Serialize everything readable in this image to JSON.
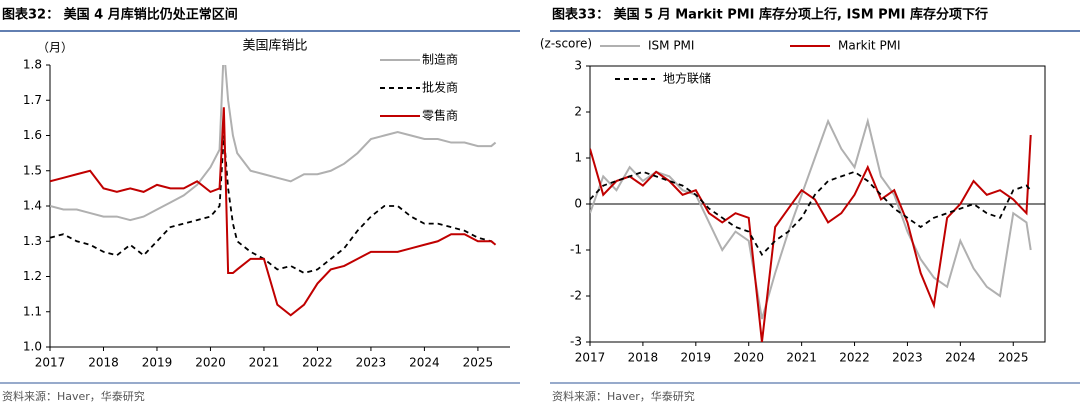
{
  "chart_data": [
    {
      "type": "line",
      "caption": "图表32：  美国 4 月库销比仍处正常区间",
      "title": "美国库销比",
      "y_label": "（月）",
      "source": "资料来源：Haver，华泰研究",
      "x": [
        2017,
        2017.25,
        2017.5,
        2017.75,
        2018,
        2018.25,
        2018.5,
        2018.75,
        2019,
        2019.25,
        2019.5,
        2019.75,
        2020,
        2020.17,
        2020.25,
        2020.33,
        2020.42,
        2020.5,
        2020.75,
        2021,
        2021.25,
        2021.5,
        2021.75,
        2022,
        2022.25,
        2022.5,
        2022.75,
        2023,
        2023.25,
        2023.5,
        2023.75,
        2024,
        2024.25,
        2024.5,
        2024.75,
        2025,
        2025.25,
        2025.33
      ],
      "series": [
        {
          "name": "制造商",
          "color": "#b0b0b0",
          "dash": false,
          "values": [
            1.4,
            1.39,
            1.39,
            1.38,
            1.37,
            1.37,
            1.36,
            1.37,
            1.39,
            1.41,
            1.43,
            1.46,
            1.51,
            1.56,
            1.85,
            1.7,
            1.6,
            1.55,
            1.5,
            1.49,
            1.48,
            1.47,
            1.49,
            1.49,
            1.5,
            1.52,
            1.55,
            1.59,
            1.6,
            1.61,
            1.6,
            1.59,
            1.59,
            1.58,
            1.58,
            1.57,
            1.57,
            1.58
          ]
        },
        {
          "name": "批发商",
          "color": "#000000",
          "dash": true,
          "values": [
            1.31,
            1.32,
            1.3,
            1.29,
            1.27,
            1.26,
            1.29,
            1.26,
            1.3,
            1.34,
            1.35,
            1.36,
            1.37,
            1.4,
            1.6,
            1.45,
            1.35,
            1.3,
            1.27,
            1.25,
            1.22,
            1.23,
            1.21,
            1.22,
            1.25,
            1.28,
            1.33,
            1.37,
            1.4,
            1.4,
            1.37,
            1.35,
            1.35,
            1.34,
            1.33,
            1.31,
            1.3,
            1.29
          ]
        },
        {
          "name": "零售商",
          "color": "#c00000",
          "dash": false,
          "values": [
            1.47,
            1.48,
            1.49,
            1.5,
            1.45,
            1.44,
            1.45,
            1.44,
            1.46,
            1.45,
            1.45,
            1.47,
            1.44,
            1.45,
            1.68,
            1.21,
            1.21,
            1.22,
            1.25,
            1.25,
            1.12,
            1.09,
            1.12,
            1.18,
            1.22,
            1.23,
            1.25,
            1.27,
            1.27,
            1.27,
            1.28,
            1.29,
            1.3,
            1.32,
            1.32,
            1.3,
            1.3,
            1.29
          ]
        }
      ],
      "xlim": [
        2017,
        2025.6
      ],
      "xticks": [
        2017,
        2018,
        2019,
        2020,
        2021,
        2022,
        2023,
        2024,
        2025
      ],
      "ylim": [
        1.0,
        1.8
      ],
      "yticks": [
        {
          "value": 1.0,
          "label": "1.0"
        },
        1.1,
        1.2,
        1.3,
        1.4,
        1.5,
        1.6,
        1.7,
        1.8
      ]
    },
    {
      "type": "line",
      "caption": "图表33：  美国 5 月 Markit PMI 库存分项上行, ISM PMI 库存分项下行",
      "y_label": "(z-score)",
      "source": "资料来源：Haver，华泰研究",
      "x": [
        2017,
        2017.25,
        2017.5,
        2017.75,
        2018,
        2018.25,
        2018.5,
        2018.75,
        2019,
        2019.25,
        2019.5,
        2019.75,
        2020,
        2020.25,
        2020.5,
        2020.75,
        2021,
        2021.25,
        2021.5,
        2021.75,
        2022,
        2022.25,
        2022.5,
        2022.75,
        2023,
        2023.25,
        2023.5,
        2023.75,
        2024,
        2024.25,
        2024.5,
        2024.75,
        2025,
        2025.25,
        2025.33
      ],
      "series": [
        {
          "name": "ISM PMI",
          "color": "#b0b0b0",
          "dash": false,
          "values": [
            -0.2,
            0.6,
            0.3,
            0.8,
            0.5,
            0.7,
            0.6,
            0.3,
            0.2,
            -0.4,
            -1.0,
            -0.6,
            -0.8,
            -2.5,
            -1.5,
            -0.6,
            0.2,
            1.0,
            1.8,
            1.2,
            0.8,
            1.8,
            0.6,
            0.2,
            -0.6,
            -1.2,
            -1.6,
            -1.8,
            -0.8,
            -1.4,
            -1.8,
            -2.0,
            -0.2,
            -0.4,
            -1.0
          ]
        },
        {
          "name": "Markit PMI",
          "color": "#c00000",
          "dash": false,
          "values": [
            1.2,
            0.2,
            0.5,
            0.6,
            0.4,
            0.7,
            0.5,
            0.2,
            0.3,
            -0.2,
            -0.4,
            -0.2,
            -0.3,
            -3.0,
            -0.5,
            -0.1,
            0.3,
            0.1,
            -0.4,
            -0.2,
            0.2,
            0.8,
            0.1,
            0.3,
            -0.4,
            -1.5,
            -2.2,
            -0.3,
            0.0,
            0.5,
            0.2,
            0.3,
            0.1,
            -0.2,
            1.5
          ]
        },
        {
          "name": "地方联储",
          "color": "#000000",
          "dash": true,
          "values": [
            0.1,
            0.4,
            0.5,
            0.6,
            0.7,
            0.6,
            0.5,
            0.4,
            0.2,
            -0.1,
            -0.3,
            -0.5,
            -0.6,
            -1.1,
            -0.8,
            -0.6,
            -0.3,
            0.2,
            0.5,
            0.6,
            0.7,
            0.5,
            0.2,
            -0.1,
            -0.3,
            -0.5,
            -0.3,
            -0.2,
            -0.1,
            0.0,
            -0.2,
            -0.3,
            0.3,
            0.4,
            0.3
          ]
        }
      ],
      "xlim": [
        2017,
        2025.6
      ],
      "xticks": [
        2017,
        2018,
        2019,
        2020,
        2021,
        2022,
        2023,
        2024,
        2025
      ],
      "ylim": [
        -3,
        3
      ],
      "yticks": [
        -3,
        -2,
        -1,
        0,
        1,
        2,
        3
      ],
      "zero_line": true
    }
  ]
}
